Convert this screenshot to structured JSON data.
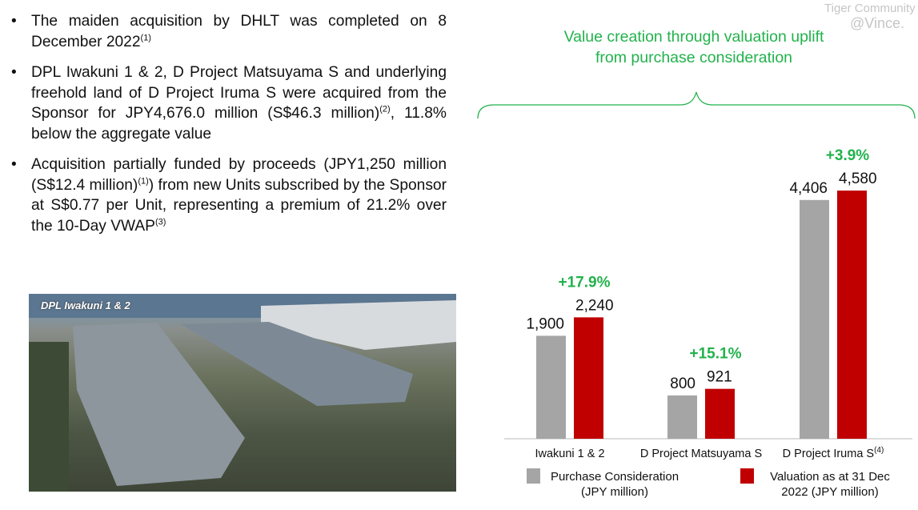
{
  "bullets": [
    {
      "text": "The maiden acquisition by DHLT was completed on 8 December 2022",
      "note": "(1)"
    },
    {
      "text": "DPL Iwakuni 1 & 2, D Project Matsuyama S and underlying freehold land of D Project Iruma S were acquired from the Sponsor for JPY4,676.0 million (S$46.3 million)",
      "note": "(2)",
      "text_after": ", 11.8% below the aggregate value"
    },
    {
      "text": "Acquisition partially funded by proceeds (JPY1,250 million (S$12.4 million)",
      "note": "(1)",
      "text_after": ") from new Units subscribed by the Sponsor at S$0.77 per Unit, representing a premium of 21.2% over the 10-Day VWAP",
      "note2": "(3)"
    }
  ],
  "photo": {
    "caption": "DPL Iwakuni 1 & 2"
  },
  "brace_title": "Value creation through valuation uplift from purchase consideration",
  "watermark": {
    "line1": "Tiger Community",
    "line2": "@Vince."
  },
  "colors": {
    "purchase": "#a5a5a5",
    "valuation": "#c00000",
    "uplift": "#22b24c"
  },
  "chart_data": {
    "type": "bar",
    "categories": [
      "Iwakuni 1 & 2",
      "D Project Matsuyama S",
      "D Project Iruma S"
    ],
    "category_notes": [
      "",
      "",
      "(4)"
    ],
    "series": [
      {
        "name": "Purchase Consideration (JPY million)",
        "values": [
          1900,
          800,
          4406
        ],
        "labels": [
          "1,900",
          "800",
          "4,406"
        ]
      },
      {
        "name": "Valuation as at 31 Dec 2022 (JPY million)",
        "values": [
          2240,
          921,
          4580
        ],
        "labels": [
          "2,240",
          "921",
          "4,580"
        ]
      }
    ],
    "annotations": [
      "+17.9%",
      "+15.1%",
      "+3.9%"
    ],
    "ylim": [
      0,
      4580
    ],
    "grid": false,
    "legend": "bottom"
  }
}
